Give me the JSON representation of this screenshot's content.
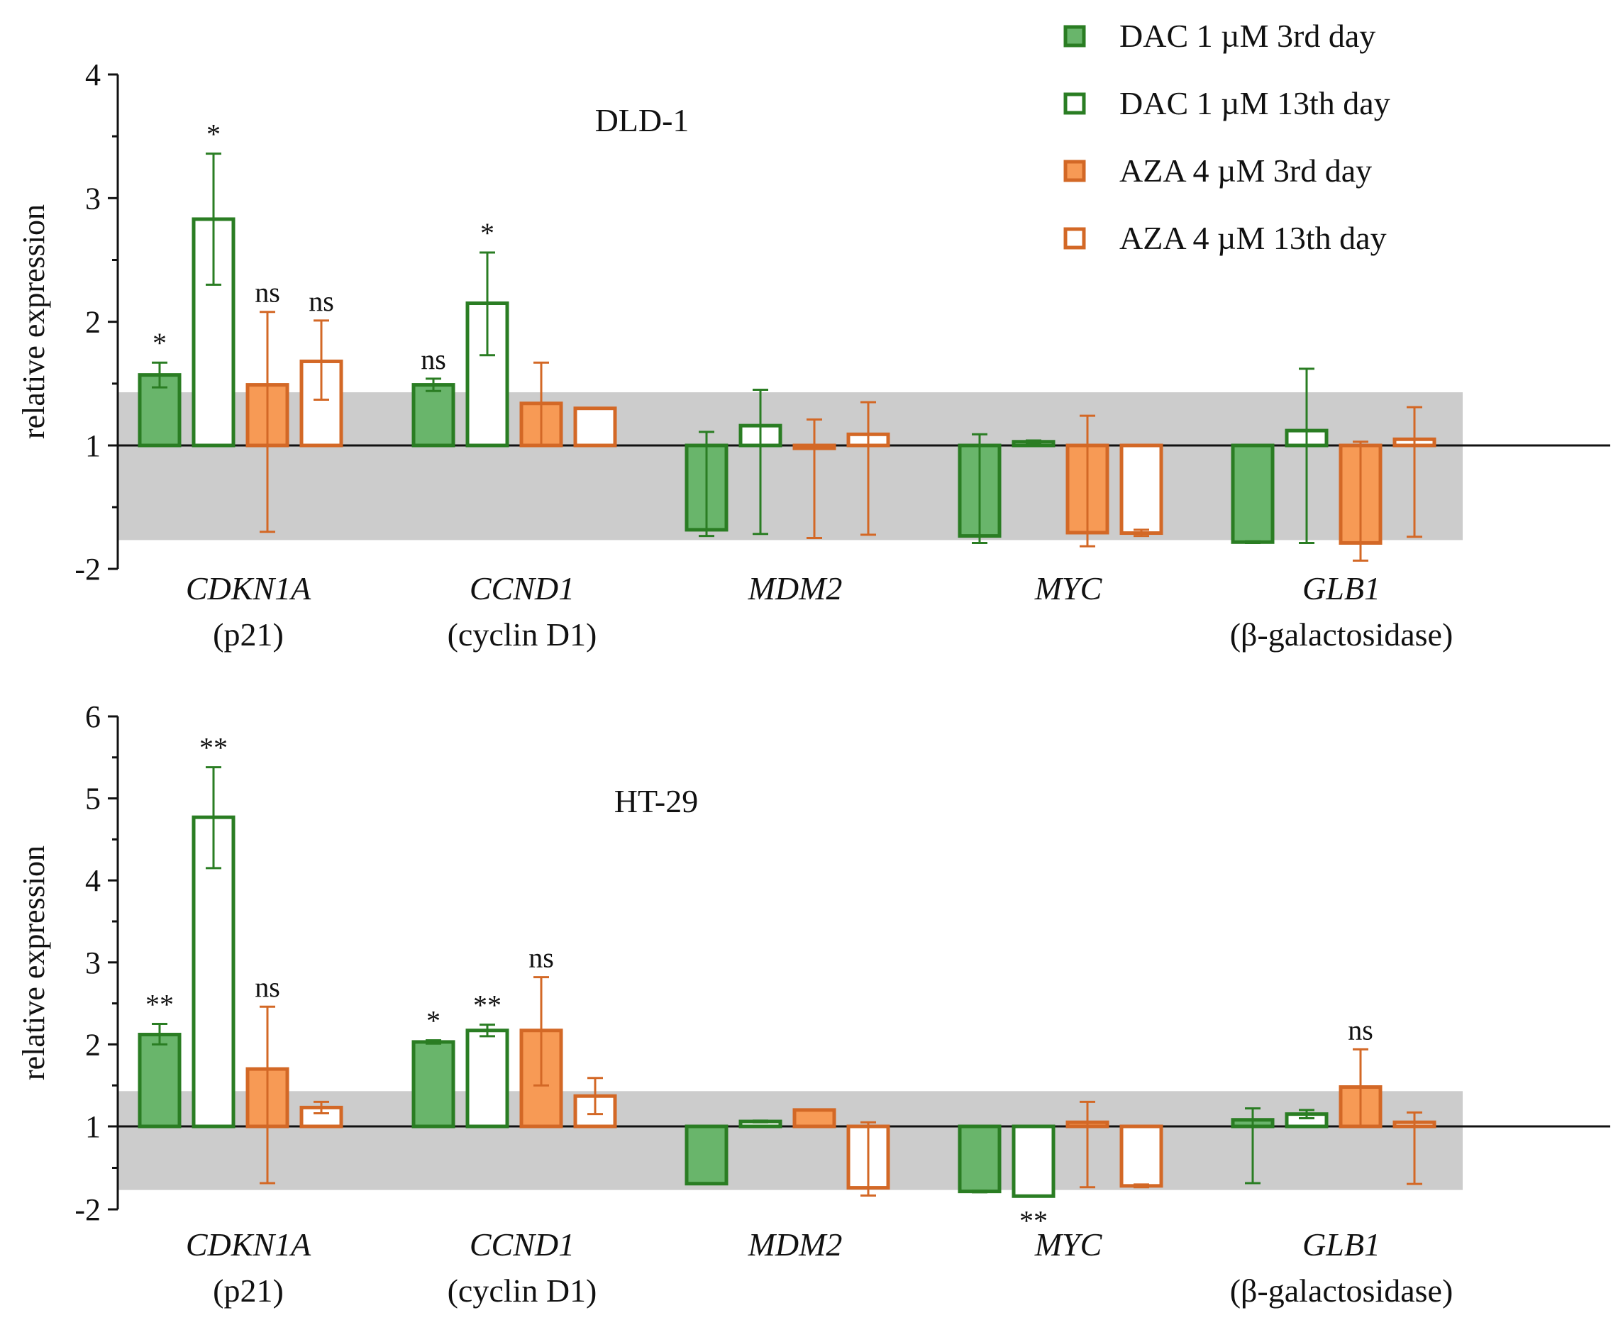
{
  "figure": {
    "legend": [
      {
        "label": "DAC  1 µM  3rd day",
        "color": "#2a7d23",
        "fill": "#69b56b",
        "filled": true
      },
      {
        "label": "DAC  1 µM  13th day",
        "color": "#2a7d23",
        "fill": "#ffffff",
        "filled": false
      },
      {
        "label": "AZA   4 µM  3rd day",
        "color": "#d36826",
        "fill": "#f79a55",
        "filled": true
      },
      {
        "label": "AZA   4 µM  13th day",
        "color": "#d36826",
        "fill": "#ffffff",
        "filled": false
      }
    ]
  },
  "chart_data": [
    {
      "type": "bar",
      "title": "DLD-1",
      "ylabel": "relative expression",
      "y_ticks": [
        -2,
        1,
        2,
        3,
        4
      ],
      "y_tick_labels": [
        "-2",
        "1",
        "2",
        "3",
        "4"
      ],
      "baseline": 1,
      "ylim": [
        -2,
        4
      ],
      "reference_band": [
        -1.3,
        1.43
      ],
      "categories": [
        {
          "name": "CDKN1A",
          "sub": "(p21)"
        },
        {
          "name": "CCND1",
          "sub": "(cyclin D1)"
        },
        {
          "name": "MDM2",
          "sub": ""
        },
        {
          "name": "MYC",
          "sub": ""
        },
        {
          "name": "GLB1",
          "sub": "(β-galactosidase)"
        }
      ],
      "series": [
        {
          "name": "DAC  1 µM  3rd day",
          "values": [
            1.57,
            1.49,
            -1.05,
            -1.2,
            -1.35
          ],
          "err_low": [
            1.47,
            1.44,
            -1.2,
            -1.37,
            -1.37
          ],
          "err_high": [
            1.67,
            1.54,
            1.11,
            1.09,
            -1.33
          ],
          "sig": [
            "*",
            "ns",
            "",
            "",
            ""
          ]
        },
        {
          "name": "DAC  1 µM  13th day",
          "values": [
            2.83,
            2.15,
            1.16,
            1.03,
            1.12
          ],
          "err_low": [
            2.3,
            1.73,
            -1.15,
            1.02,
            -1.37
          ],
          "err_high": [
            3.36,
            2.56,
            1.45,
            1.04,
            1.62
          ],
          "sig": [
            "*",
            "*",
            "",
            "",
            ""
          ]
        },
        {
          "name": "AZA   4 µM  3rd day",
          "values": [
            1.49,
            1.34,
            1.0,
            -1.12,
            -1.37
          ],
          "err_low": [
            -1.1,
            1.0,
            -1.25,
            -1.45,
            -1.8
          ],
          "err_high": [
            2.08,
            1.67,
            1.21,
            1.24,
            1.03
          ],
          "sig": [
            "ns",
            "",
            "",
            "",
            ""
          ]
        },
        {
          "name": "AZA   4 µM  13th day",
          "values": [
            1.68,
            1.3,
            1.09,
            -1.13,
            1.05
          ],
          "err_low": [
            1.37,
            1.3,
            -1.17,
            -1.2,
            -1.22
          ],
          "err_high": [
            2.01,
            1.3,
            1.35,
            -1.05,
            1.31
          ],
          "sig": [
            "ns",
            "",
            "",
            "",
            ""
          ]
        }
      ]
    },
    {
      "type": "bar",
      "title": "HT-29",
      "ylabel": "relative expression",
      "y_ticks": [
        -2,
        1,
        2,
        3,
        4,
        5,
        6
      ],
      "y_tick_labels": [
        "-2",
        "1",
        "2",
        "3",
        "4",
        "5",
        "6"
      ],
      "baseline": 1,
      "ylim": [
        -2,
        6
      ],
      "reference_band": [
        -1.3,
        1.43
      ],
      "categories": [
        {
          "name": "CDKN1A",
          "sub": "(p21)"
        },
        {
          "name": "CCND1",
          "sub": "(cyclin D1)"
        },
        {
          "name": "MDM2",
          "sub": ""
        },
        {
          "name": "MYC",
          "sub": ""
        },
        {
          "name": "GLB1",
          "sub": "(β-galactosidase)"
        }
      ],
      "series": [
        {
          "name": "DAC  1 µM  3rd day",
          "values": [
            2.12,
            2.03,
            -1.07,
            -1.35,
            1.08
          ],
          "err_low": [
            2.0,
            2.01,
            -1.07,
            -1.38,
            -1.05
          ],
          "err_high": [
            2.25,
            2.05,
            -1.07,
            -1.33,
            1.22
          ],
          "sig": [
            "**",
            "*",
            "",
            "",
            ""
          ]
        },
        {
          "name": "DAC  1 µM  13th day",
          "values": [
            4.77,
            2.17,
            1.06,
            -1.52,
            1.15
          ],
          "err_low": [
            4.15,
            2.1,
            1.05,
            -1.52,
            1.1
          ],
          "err_high": [
            5.38,
            2.24,
            1.07,
            -1.52,
            1.2
          ],
          "sig": [
            "**",
            "**",
            "",
            "**",
            ""
          ]
        },
        {
          "name": "AZA   4 µM  3rd day",
          "values": [
            1.7,
            2.17,
            1.2,
            1.05,
            1.48
          ],
          "err_low": [
            -1.05,
            1.5,
            1.2,
            -1.2,
            1.0
          ],
          "err_high": [
            2.46,
            2.82,
            1.2,
            1.3,
            1.94
          ],
          "sig": [
            "ns",
            "ns",
            "",
            "",
            "ns"
          ]
        },
        {
          "name": "AZA   4 µM  13th day",
          "values": [
            1.23,
            1.37,
            -1.22,
            -1.15,
            1.05
          ],
          "err_low": [
            1.16,
            1.15,
            -1.5,
            -1.2,
            -1.08
          ],
          "err_high": [
            1.3,
            1.59,
            1.05,
            -1.1,
            1.17
          ],
          "sig": [
            "",
            "",
            "",
            "",
            ""
          ]
        }
      ]
    }
  ]
}
